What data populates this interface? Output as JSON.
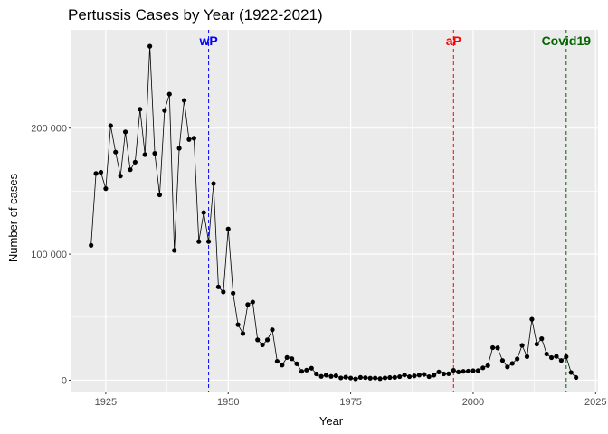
{
  "chart_data": {
    "type": "line",
    "title": "Pertussis Cases by Year (1922-2021)",
    "xlabel": "Year",
    "ylabel": "Number of cases",
    "xlim": [
      1918,
      2025.5
    ],
    "ylim": [
      -9000,
      278000
    ],
    "x_ticks": [
      1925,
      1950,
      1975,
      2000,
      2025
    ],
    "x_tick_labels": [
      "1925",
      "1950",
      "1975",
      "2000",
      "2025"
    ],
    "y_ticks": [
      0,
      100000,
      200000
    ],
    "y_tick_labels": [
      "0",
      "100 000",
      "200 000"
    ],
    "grid": true,
    "panel_color": "#ebebeb",
    "grid_color": "#ffffff",
    "line_color": "#000000",
    "point_color": "#000000",
    "x": [
      1922,
      1923,
      1924,
      1925,
      1926,
      1927,
      1928,
      1929,
      1930,
      1931,
      1932,
      1933,
      1934,
      1935,
      1936,
      1937,
      1938,
      1939,
      1940,
      1941,
      1942,
      1943,
      1944,
      1945,
      1946,
      1947,
      1948,
      1949,
      1950,
      1951,
      1952,
      1953,
      1954,
      1955,
      1956,
      1957,
      1958,
      1959,
      1960,
      1961,
      1962,
      1963,
      1964,
      1965,
      1966,
      1967,
      1968,
      1969,
      1970,
      1971,
      1972,
      1973,
      1974,
      1975,
      1976,
      1977,
      1978,
      1979,
      1980,
      1981,
      1982,
      1983,
      1984,
      1985,
      1986,
      1987,
      1988,
      1989,
      1990,
      1991,
      1992,
      1993,
      1994,
      1995,
      1996,
      1997,
      1998,
      1999,
      2000,
      2001,
      2002,
      2003,
      2004,
      2005,
      2006,
      2007,
      2008,
      2009,
      2010,
      2011,
      2012,
      2013,
      2014,
      2015,
      2016,
      2017,
      2018,
      2019,
      2020,
      2021
    ],
    "y": [
      107000,
      164000,
      165000,
      152000,
      202000,
      181000,
      162000,
      197000,
      167000,
      173000,
      215000,
      179000,
      265000,
      180000,
      147000,
      214000,
      227000,
      103000,
      184000,
      222000,
      191000,
      192000,
      110000,
      133000,
      110000,
      156000,
      74000,
      70000,
      120000,
      69000,
      44000,
      37000,
      60000,
      62000,
      32000,
      28000,
      32000,
      40000,
      15000,
      12000,
      18000,
      17000,
      13000,
      7000,
      8000,
      9500,
      5000,
      3000,
      4000,
      3000,
      3500,
      1800,
      2400,
      1700,
      1000,
      2200,
      2000,
      1600,
      1700,
      1200,
      1800,
      2100,
      2200,
      2800,
      4200,
      2800,
      3400,
      4100,
      4600,
      2800,
      4000,
      6500,
      5000,
      5100,
      7800,
      6500,
      7000,
      7200,
      7500,
      7600,
      9800,
      11600,
      25800,
      25600,
      15600,
      10500,
      13300,
      16900,
      27600,
      18700,
      48300,
      28600,
      32900,
      20800,
      17900,
      18900,
      15600,
      18600,
      6100,
      2100
    ],
    "vlines": [
      {
        "x": 1946,
        "label": "wP",
        "color": "#0000ff"
      },
      {
        "x": 1996,
        "label": "aP",
        "color": "#ff0000"
      },
      {
        "x": 2019,
        "label": "Covid19",
        "color": "#006400"
      }
    ]
  }
}
